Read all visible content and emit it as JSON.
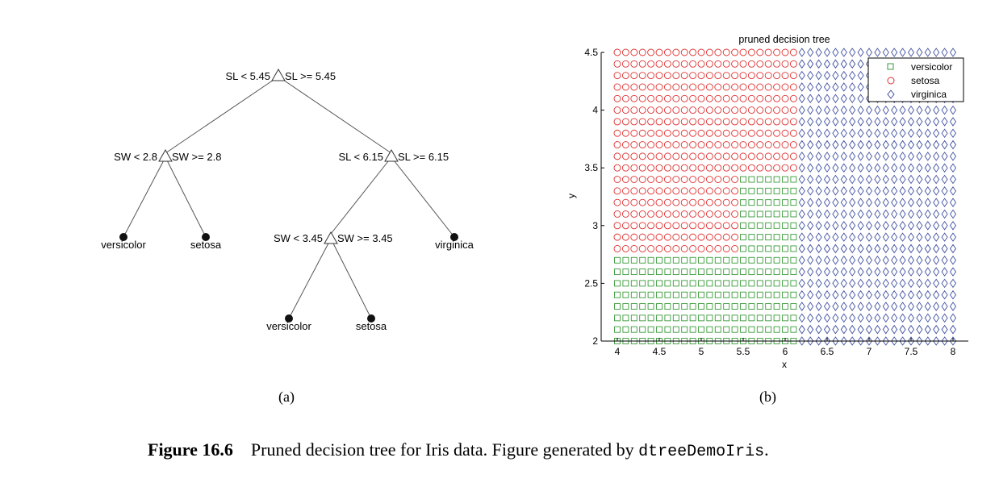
{
  "tree": {
    "nodes": [
      {
        "id": "root",
        "left": "SL < 5.45",
        "right": "SL >= 5.45"
      },
      {
        "id": "n1",
        "left": "SW < 2.8",
        "right": "SW >= 2.8"
      },
      {
        "id": "n2",
        "left": "SL < 6.15",
        "right": "SL >= 6.15"
      },
      {
        "id": "n3",
        "left": "SW < 3.45",
        "right": "SW >= 3.45"
      }
    ],
    "leaves": [
      {
        "id": "l1",
        "label": "versicolor"
      },
      {
        "id": "l2",
        "label": "setosa"
      },
      {
        "id": "l3",
        "label": "virginica"
      },
      {
        "id": "l4",
        "label": "versicolor"
      },
      {
        "id": "l5",
        "label": "setosa"
      }
    ]
  },
  "chart_data": {
    "type": "scatter",
    "title": "pruned decision tree",
    "xlabel": "x",
    "ylabel": "y",
    "xlim": [
      3.9,
      8.2
    ],
    "ylim": [
      2,
      4.5
    ],
    "xticks": [
      4,
      4.5,
      5,
      5.5,
      6,
      6.5,
      7,
      7.5,
      8
    ],
    "yticks": [
      2,
      2.5,
      3,
      3.5,
      4,
      4.5
    ],
    "grid": false,
    "legend_position": "top-right",
    "grid_points": {
      "x_start": 4,
      "x_step": 0.1,
      "x_count": 41,
      "y_start": 2,
      "y_step": 0.1,
      "y_count": 26
    },
    "decision_rules": {
      "sl_split": 5.45,
      "sl_split2": 6.15,
      "sw_split": 2.8,
      "sw_split2": 3.45
    },
    "series": [
      {
        "name": "versicolor",
        "marker": "square",
        "color": "#3a9a3a"
      },
      {
        "name": "setosa",
        "marker": "circle",
        "color": "#e03030"
      },
      {
        "name": "virginica",
        "marker": "diamond",
        "color": "#4050a0"
      }
    ]
  },
  "subfig": {
    "a": "(a)",
    "b": "(b)"
  },
  "caption": {
    "number": "Figure 16.6",
    "text": "Pruned decision tree for Iris data. Figure generated by ",
    "code": "dtreeDemoIris",
    "end": "."
  }
}
